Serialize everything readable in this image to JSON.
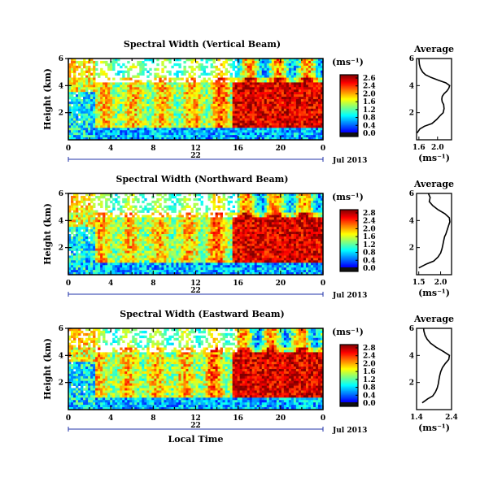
{
  "chart_data": [
    {
      "type": "heatmap",
      "title": "Spectral Width (Vertical Beam)",
      "ylabel": "Height (km)",
      "y_ticks": [
        "6",
        "4",
        "2"
      ],
      "ylim": [
        0,
        6
      ],
      "x_ticks": [
        "0",
        "4",
        "8",
        "12",
        "16",
        "20",
        "0"
      ],
      "xlim": [
        0,
        24
      ],
      "date_day": "22",
      "date_label": "Jul 2013",
      "colorbar": {
        "unit": "(ms⁻¹)",
        "ticks": [
          "2.6",
          "2.4",
          "2.0",
          "1.6",
          "1.2",
          "0.8",
          "0.4",
          "0.0"
        ],
        "range": [
          0,
          2.8
        ]
      },
      "average": {
        "title": "Average",
        "xlabel": "(ms⁻¹)",
        "x_ticks": [
          "1.6",
          "2.0"
        ],
        "xlim": [
          1.55,
          2.3
        ],
        "y_ticks": [
          "6",
          "4",
          "2"
        ],
        "ylim": [
          0,
          6
        ],
        "profile": {
          "height": [
            0.5,
            0.8,
            1.0,
            1.2,
            1.5,
            1.8,
            2.0,
            2.3,
            2.6,
            2.8,
            3.0,
            3.2,
            3.4,
            3.6,
            3.8,
            4.0,
            4.2,
            4.4,
            4.6,
            4.8,
            5.0,
            5.3,
            5.6,
            6.0
          ],
          "value": [
            1.56,
            1.62,
            1.72,
            1.88,
            1.98,
            2.06,
            2.12,
            2.14,
            2.13,
            2.1,
            2.09,
            2.1,
            2.14,
            2.2,
            2.24,
            2.26,
            2.18,
            2.02,
            1.86,
            1.74,
            1.68,
            1.63,
            1.61,
            1.6
          ]
        }
      }
    },
    {
      "type": "heatmap",
      "title": "Spectral Width (Northward Beam)",
      "ylabel": "Height (km)",
      "y_ticks": [
        "6",
        "4",
        "2"
      ],
      "ylim": [
        0,
        6
      ],
      "x_ticks": [
        "0",
        "4",
        "8",
        "12",
        "16",
        "20",
        "0"
      ],
      "xlim": [
        0,
        24
      ],
      "date_day": "22",
      "date_label": "Jul 2013",
      "colorbar": {
        "unit": "(ms⁻¹)",
        "ticks": [
          "2.8",
          "2.4",
          "2.0",
          "1.6",
          "1.2",
          "0.8",
          "0.4",
          "0.0"
        ],
        "range": [
          0,
          2.8
        ]
      },
      "average": {
        "title": "Average",
        "xlabel": "(ms⁻¹)",
        "x_ticks": [
          "1.5",
          "2.0"
        ],
        "xlim": [
          1.45,
          2.25
        ],
        "y_ticks": [
          "6",
          "4",
          "2"
        ],
        "ylim": [
          0,
          6
        ],
        "profile": {
          "height": [
            0.5,
            0.8,
            1.0,
            1.3,
            1.6,
            1.9,
            2.2,
            2.5,
            2.8,
            3.0,
            3.3,
            3.6,
            3.9,
            4.2,
            4.5,
            4.8,
            5.1,
            5.4,
            5.7,
            6.0
          ],
          "value": [
            1.5,
            1.68,
            1.84,
            1.94,
            2.0,
            2.03,
            2.05,
            2.07,
            2.09,
            2.12,
            2.15,
            2.18,
            2.21,
            2.2,
            2.1,
            1.94,
            1.82,
            1.74,
            1.76,
            1.72
          ]
        }
      }
    },
    {
      "type": "heatmap",
      "title": "Spectral Width (Eastward Beam)",
      "ylabel": "Height (km)",
      "y_ticks": [
        "6",
        "4",
        "2"
      ],
      "ylim": [
        0,
        6
      ],
      "x_ticks": [
        "0",
        "4",
        "8",
        "12",
        "16",
        "20",
        "0"
      ],
      "xlim": [
        0,
        24
      ],
      "date_day": "22",
      "date_label": "Jul 2013",
      "xlabel": "Local Time",
      "colorbar": {
        "unit": "(ms⁻¹)",
        "ticks": [
          "2.8",
          "2.4",
          "2.0",
          "1.6",
          "1.2",
          "0.8",
          "0.4",
          "0.0"
        ],
        "range": [
          0,
          2.8
        ]
      },
      "average": {
        "title": "Average",
        "xlabel": "(ms⁻¹)",
        "x_ticks": [
          "1.4",
          "2.4"
        ],
        "xlim": [
          1.4,
          2.4
        ],
        "y_ticks": [
          "6",
          "4",
          "2"
        ],
        "ylim": [
          0,
          6
        ],
        "profile": {
          "height": [
            0.5,
            0.8,
            1.0,
            1.3,
            1.6,
            1.9,
            2.2,
            2.5,
            2.8,
            3.1,
            3.4,
            3.7,
            4.0,
            4.3,
            4.6,
            4.9,
            5.2,
            5.5,
            5.8,
            6.0
          ],
          "value": [
            1.56,
            1.72,
            1.86,
            1.94,
            1.99,
            2.02,
            2.04,
            2.06,
            2.09,
            2.14,
            2.22,
            2.32,
            2.34,
            2.16,
            1.96,
            1.8,
            1.7,
            1.64,
            1.61,
            1.6
          ]
        }
      }
    }
  ]
}
